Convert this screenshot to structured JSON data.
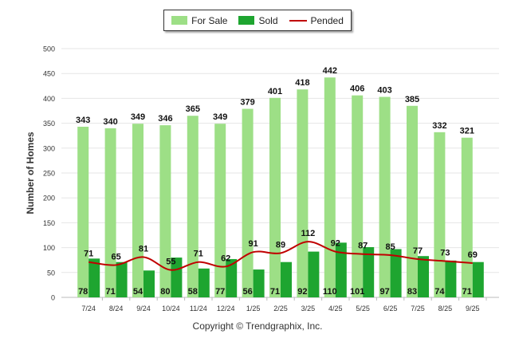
{
  "chart_data": {
    "type": "bar",
    "title": "",
    "ylabel": "Number of Homes",
    "xlabel": "",
    "ylim": [
      0,
      500
    ],
    "yticks": [
      0,
      50,
      100,
      150,
      200,
      250,
      300,
      350,
      400,
      450,
      500
    ],
    "categories": [
      "7/24",
      "8/24",
      "9/24",
      "10/24",
      "11/24",
      "12/24",
      "1/25",
      "2/25",
      "3/25",
      "4/25",
      "5/25",
      "6/25",
      "7/25",
      "8/25",
      "9/25"
    ],
    "series": [
      {
        "name": "For Sale",
        "kind": "bar",
        "color": "#9ddf86",
        "values": [
          343,
          340,
          349,
          346,
          365,
          349,
          379,
          401,
          418,
          442,
          406,
          403,
          385,
          332,
          321
        ]
      },
      {
        "name": "Sold",
        "kind": "bar",
        "color": "#1ea530",
        "values": [
          78,
          71,
          54,
          80,
          58,
          77,
          56,
          71,
          92,
          110,
          101,
          97,
          83,
          74,
          71
        ]
      },
      {
        "name": "Pended",
        "kind": "line",
        "color": "#c00000",
        "values": [
          71,
          65,
          81,
          55,
          71,
          62,
          91,
          89,
          112,
          92,
          87,
          85,
          77,
          73,
          69
        ]
      }
    ],
    "legend_position": "top-center"
  },
  "legend": {
    "for_sale": "For Sale",
    "sold": "Sold",
    "pended": "Pended"
  },
  "copyright": "Copyright © Trendgraphix, Inc."
}
